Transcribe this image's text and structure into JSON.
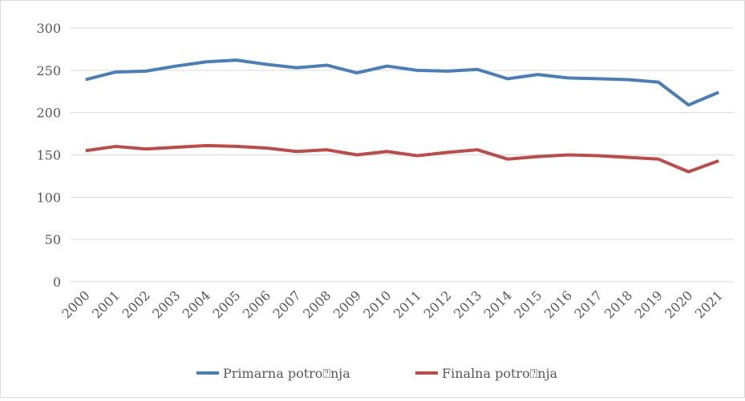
{
  "chart_data": {
    "type": "line",
    "categories": [
      "2000",
      "2001",
      "2002",
      "2003",
      "2004",
      "2005",
      "2006",
      "2007",
      "2008",
      "2009",
      "2010",
      "2011",
      "2012",
      "2013",
      "2014",
      "2015",
      "2016",
      "2017",
      "2018",
      "2019",
      "2020",
      "2021"
    ],
    "series": [
      {
        "name": "Primarna potro⍰nja",
        "color": "#4a7ebb",
        "values": [
          239,
          248,
          249,
          255,
          260,
          262,
          257,
          253,
          256,
          247,
          255,
          250,
          249,
          251,
          240,
          245,
          241,
          240,
          239,
          236,
          209,
          224
        ]
      },
      {
        "name": "Finalna potro⍰nja",
        "color": "#be4b48",
        "values": [
          155,
          160,
          157,
          159,
          161,
          160,
          158,
          154,
          156,
          150,
          154,
          149,
          153,
          156,
          145,
          148,
          150,
          149,
          147,
          145,
          130,
          143
        ]
      }
    ],
    "ylim": [
      0,
      300
    ],
    "yticks": [
      0,
      50,
      100,
      150,
      200,
      250,
      300
    ],
    "grid": true,
    "legend": "bottom"
  }
}
